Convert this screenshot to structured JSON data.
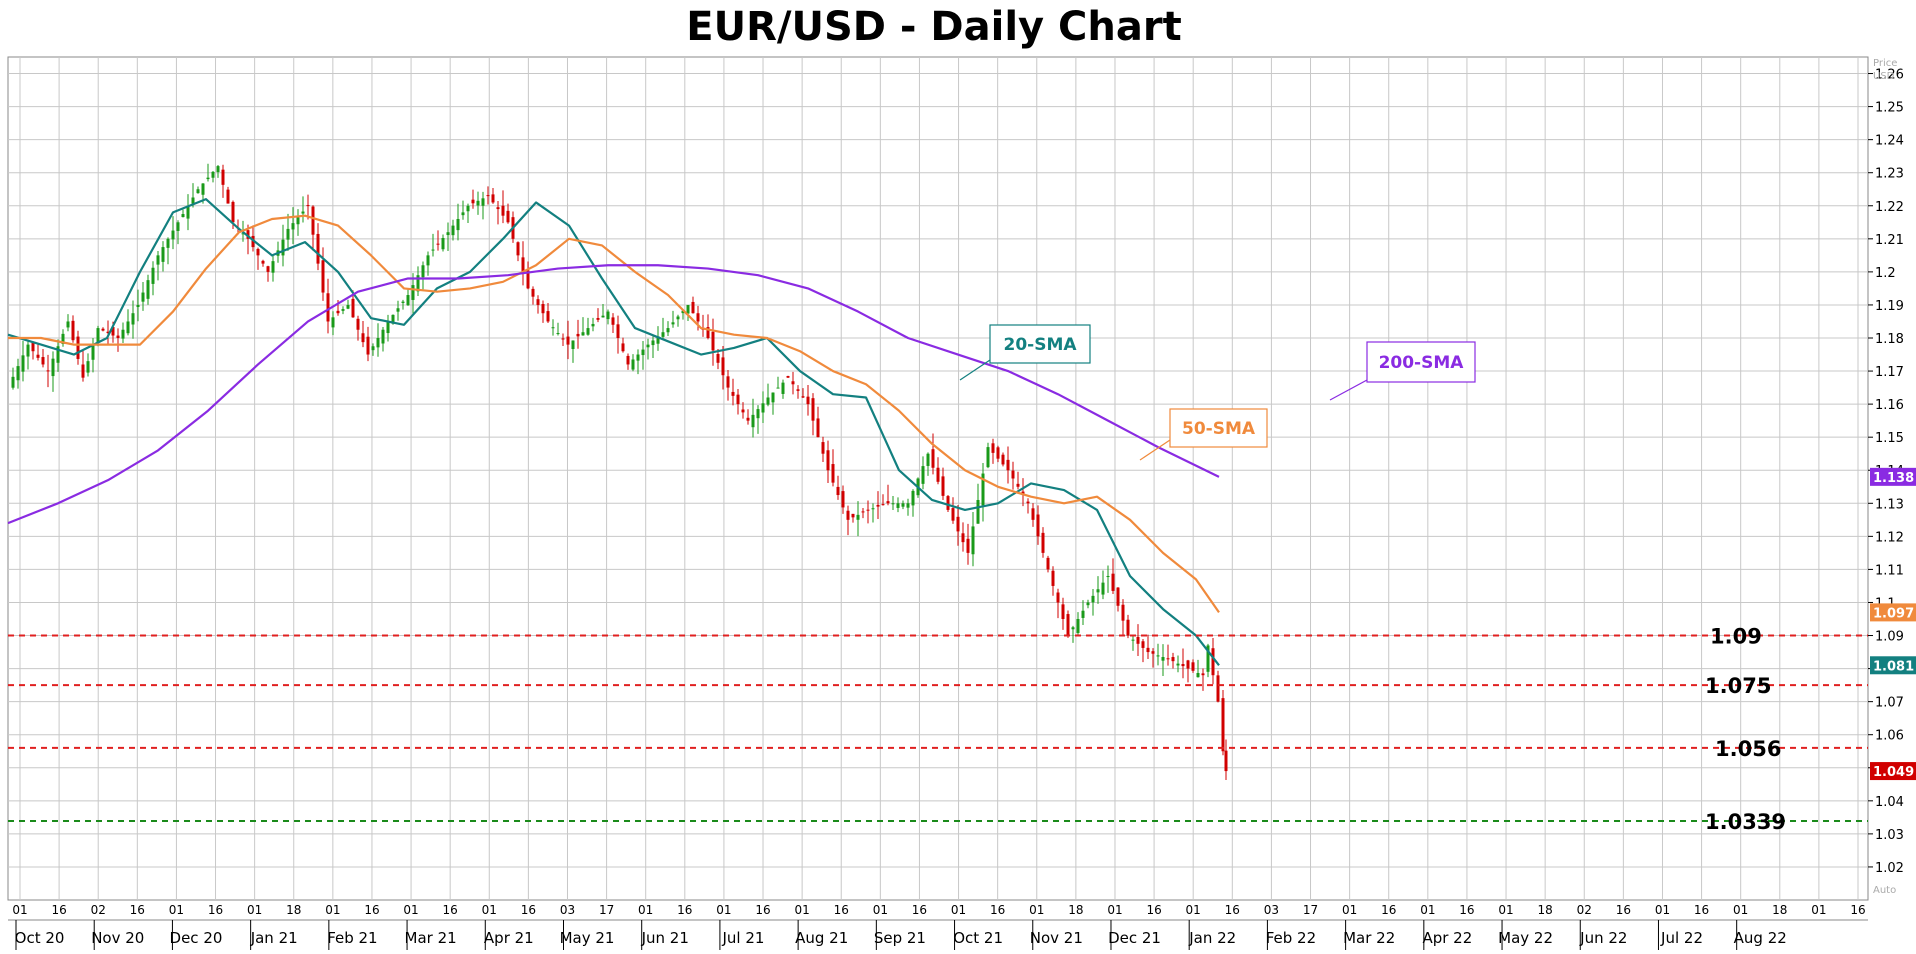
{
  "title": "EUR/USD - Daily Chart",
  "price_axis_label_1": "Price",
  "price_axis_label_2": "USD",
  "auto_label": "Auto",
  "colors": {
    "up_candle": "#1a9a1a",
    "down_candle": "#d10000",
    "sma20": "#138080",
    "sma50": "#f08a3c",
    "sma200": "#8a2be2",
    "level_red": "#e02020",
    "level_green": "#1a8a1a",
    "grid": "#c8c8c8"
  },
  "chart_data": {
    "type": "line",
    "ylim": [
      1.01,
      1.265
    ],
    "y_ticks": [
      "1.26",
      "1.25",
      "1.24",
      "1.23",
      "1.22",
      "1.21",
      "1.2",
      "1.19",
      "1.18",
      "1.17",
      "1.16",
      "1.15",
      "1.14",
      "1.13",
      "1.12",
      "1.11",
      "1.1",
      "1.09",
      "1.08",
      "1.07",
      "1.06",
      "1.05",
      "1.04",
      "1.03",
      "1.02"
    ],
    "x_day_ticks": [
      "01",
      "16",
      "02",
      "16",
      "01",
      "16",
      "01",
      "18",
      "01",
      "16",
      "01",
      "16",
      "01",
      "16",
      "03",
      "17",
      "01",
      "16",
      "01",
      "16",
      "01",
      "16",
      "01",
      "16",
      "01",
      "16",
      "01",
      "18",
      "01",
      "16",
      "01",
      "16",
      "03",
      "17",
      "01",
      "16",
      "01",
      "16",
      "01",
      "18",
      "02",
      "16",
      "01",
      "16",
      "01",
      "18",
      "01",
      "16"
    ],
    "x_month_labels": [
      "Oct 20",
      "Nov 20",
      "Dec 20",
      "Jan 21",
      "Feb 21",
      "Mar 21",
      "Apr 21",
      "May 21",
      "Jun 21",
      "Jul 21",
      "Aug 21",
      "Sep 21",
      "Oct 21",
      "Nov 21",
      "Dec 21",
      "Jan 22",
      "Feb 22",
      "Mar 22",
      "Apr 22",
      "May 22",
      "Jun 22",
      "Jul 22",
      "Aug 22"
    ],
    "series": [
      {
        "name": "20-SMA",
        "x": [
          0,
          33,
          66,
          99,
          132,
          165,
          198,
          231,
          264,
          297,
          330,
          363,
          396,
          429,
          462,
          495,
          528,
          561,
          594,
          627,
          660,
          693,
          726,
          759,
          792,
          825,
          858,
          891,
          924,
          957,
          990,
          1023,
          1056,
          1089,
          1122,
          1155,
          1188,
          1211
        ],
        "values": [
          1.181,
          1.178,
          1.175,
          1.18,
          1.2,
          1.218,
          1.222,
          1.213,
          1.205,
          1.209,
          1.2,
          1.186,
          1.184,
          1.195,
          1.2,
          1.21,
          1.221,
          1.214,
          1.198,
          1.183,
          1.179,
          1.175,
          1.177,
          1.18,
          1.17,
          1.163,
          1.162,
          1.14,
          1.131,
          1.128,
          1.13,
          1.136,
          1.134,
          1.128,
          1.108,
          1.098,
          1.09,
          1.081
        ]
      },
      {
        "name": "50-SMA",
        "x": [
          0,
          33,
          66,
          99,
          132,
          165,
          198,
          231,
          264,
          297,
          330,
          363,
          396,
          429,
          462,
          495,
          528,
          561,
          594,
          627,
          660,
          693,
          726,
          759,
          792,
          825,
          858,
          891,
          924,
          957,
          990,
          1023,
          1056,
          1089,
          1122,
          1155,
          1188,
          1211
        ],
        "values": [
          1.18,
          1.18,
          1.178,
          1.178,
          1.178,
          1.188,
          1.201,
          1.212,
          1.216,
          1.217,
          1.214,
          1.205,
          1.195,
          1.194,
          1.195,
          1.197,
          1.202,
          1.21,
          1.208,
          1.2,
          1.193,
          1.183,
          1.181,
          1.18,
          1.176,
          1.17,
          1.166,
          1.158,
          1.148,
          1.14,
          1.135,
          1.132,
          1.13,
          1.132,
          1.125,
          1.115,
          1.107,
          1.097
        ]
      },
      {
        "name": "200-SMA",
        "x": [
          0,
          50,
          100,
          150,
          200,
          250,
          300,
          350,
          400,
          450,
          500,
          550,
          600,
          650,
          700,
          750,
          800,
          850,
          900,
          950,
          1000,
          1050,
          1100,
          1150,
          1211
        ],
        "values": [
          1.124,
          1.13,
          1.137,
          1.146,
          1.158,
          1.172,
          1.185,
          1.194,
          1.198,
          1.198,
          1.199,
          1.201,
          1.202,
          1.202,
          1.201,
          1.199,
          1.195,
          1.188,
          1.18,
          1.175,
          1.17,
          1.163,
          1.155,
          1.147,
          1.138
        ]
      },
      {
        "name": "Price",
        "x": [
          0,
          20,
          40,
          60,
          75,
          90,
          110,
          130,
          150,
          170,
          190,
          210,
          225,
          240,
          260,
          280,
          300,
          320,
          340,
          360,
          380,
          400,
          420,
          440,
          460,
          480,
          500,
          520,
          540,
          560,
          580,
          600,
          620,
          640,
          660,
          680,
          700,
          720,
          740,
          760,
          780,
          800,
          820,
          840,
          860,
          880,
          900,
          920,
          940,
          960,
          980,
          1000,
          1020,
          1040,
          1060,
          1080,
          1100,
          1120,
          1140,
          1160,
          1180,
          1195,
          1200,
          1205,
          1210,
          1215,
          1218
        ],
        "values": [
          1.165,
          1.178,
          1.17,
          1.185,
          1.168,
          1.183,
          1.18,
          1.19,
          1.205,
          1.215,
          1.225,
          1.232,
          1.215,
          1.21,
          1.2,
          1.213,
          1.22,
          1.185,
          1.19,
          1.175,
          1.185,
          1.193,
          1.205,
          1.212,
          1.22,
          1.223,
          1.215,
          1.195,
          1.185,
          1.178,
          1.183,
          1.188,
          1.172,
          1.178,
          1.183,
          1.19,
          1.18,
          1.165,
          1.155,
          1.162,
          1.168,
          1.16,
          1.14,
          1.125,
          1.128,
          1.13,
          1.13,
          1.145,
          1.128,
          1.115,
          1.147,
          1.14,
          1.13,
          1.11,
          1.09,
          1.1,
          1.108,
          1.09,
          1.085,
          1.083,
          1.08,
          1.078,
          1.087,
          1.078,
          1.07,
          1.055,
          1.049
        ]
      }
    ],
    "levels": [
      {
        "value": 1.09,
        "label": "1.09",
        "color": "red"
      },
      {
        "value": 1.075,
        "label": "1.075",
        "color": "red"
      },
      {
        "value": 1.056,
        "label": "1.056",
        "color": "red"
      },
      {
        "value": 1.0339,
        "label": "1.0339",
        "color": "green"
      }
    ],
    "annotations": [
      {
        "label": "20-SMA"
      },
      {
        "label": "50-SMA"
      },
      {
        "label": "200-SMA"
      }
    ],
    "last_values": [
      {
        "label": "1.138",
        "value": 1.138
      },
      {
        "label": "1.097",
        "value": 1.097
      },
      {
        "label": "1.081",
        "value": 1.081
      },
      {
        "label": "1.049",
        "value": 1.049
      }
    ]
  }
}
